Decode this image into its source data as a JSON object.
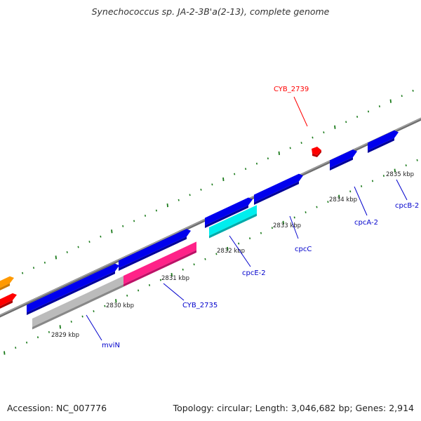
{
  "header": {
    "title": "Synechococcus sp. JA-2-3B'a(2-13), complete genome"
  },
  "footer": {
    "accession": "Accession: NC_007776",
    "topology": "Topology: circular; Length: 3,046,682 bp; Genes: 2,914"
  },
  "map": {
    "kbp_ticks": [
      "2829 kbp",
      "2830 kbp",
      "2831 kbp",
      "2832 kbp",
      "2833 kbp",
      "2834 kbp",
      "2835 kbp"
    ],
    "gene_labels": [
      {
        "id": "cyb2739",
        "text": "CYB_2739",
        "color": "#ff0000"
      },
      {
        "id": "mvin",
        "text": "mviN",
        "color": "#0000cc"
      },
      {
        "id": "cyb2735",
        "text": "CYB_2735",
        "color": "#0000cc"
      },
      {
        "id": "cpce2",
        "text": "cpcE-2",
        "color": "#0000cc"
      },
      {
        "id": "cpcc",
        "text": "cpcC",
        "color": "#0000cc"
      },
      {
        "id": "cpca2",
        "text": "cpcA-2",
        "color": "#0000cc"
      },
      {
        "id": "cpcb2",
        "text": "cpcB-2",
        "color": "#0000cc"
      }
    ],
    "colors": {
      "backbone": "#888888",
      "forward_cds": "#0000ee",
      "rna": "#ff2288",
      "cyan_feature": "#00eeee",
      "gray_feature": "#bbbbbb",
      "orange_feature": "#ff9900",
      "red_feature": "#ff0000",
      "tick_mark": "#1a7a1a"
    }
  }
}
